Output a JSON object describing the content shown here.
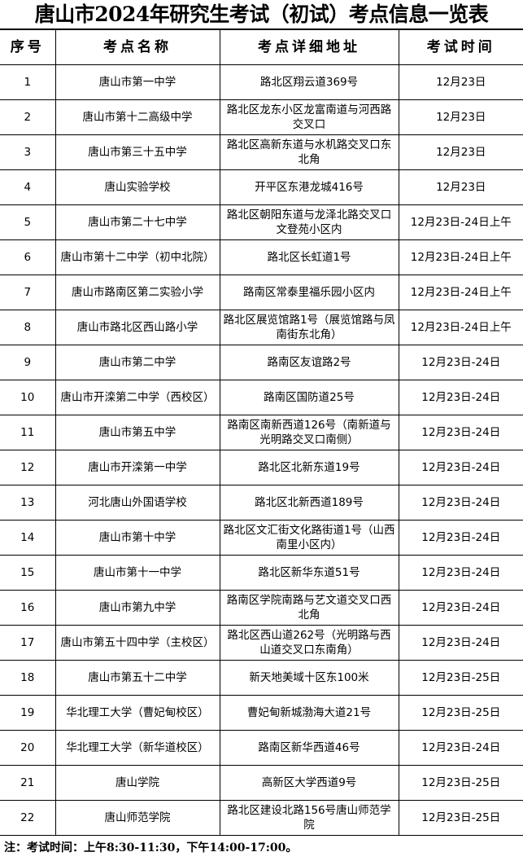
{
  "title": "唐山市2024年研究生考试（初试）考点信息一览表",
  "headers": [
    "序号",
    "考点名称",
    "考点详细地址",
    "考试时间"
  ],
  "rows": [
    [
      "1",
      "唐山市第一中学",
      "路北区翔云道369号",
      "12月23日"
    ],
    [
      "2",
      "唐山市第十二高级中学",
      "路北区龙东小区龙富南道与河西路交叉口",
      "12月23日"
    ],
    [
      "3",
      "唐山市第三十五中学",
      "路北区高新东道与水机路交叉口东北角",
      "12月23日"
    ],
    [
      "4",
      "唐山实验学校",
      "开平区东港龙城416号",
      "12月23日"
    ],
    [
      "5",
      "唐山市第二十七中学",
      "路北区朝阳东道与龙泽北路交叉口文登苑小区内",
      "12月23日-24日上午"
    ],
    [
      "6",
      "唐山市第十二中学（初中北院）",
      "路北区长虹道1号",
      "12月23日-24日上午"
    ],
    [
      "7",
      "唐山市路南区第二实验小学",
      "路南区常泰里福乐园小区内",
      "12月23日-24日上午"
    ],
    [
      "8",
      "唐山市路北区西山路小学",
      "路北区展览馆路1号（展览馆路与凤南街东北角）",
      "12月23日-24日上午"
    ],
    [
      "9",
      "唐山市第二中学",
      "路南区友谊路2号",
      "12月23日-24日"
    ],
    [
      "10",
      "唐山市开滦第二中学（西校区）",
      "路南区国防道25号",
      "12月23日-24日"
    ],
    [
      "11",
      "唐山市第五中学",
      "路南区南新西道126号（南新道与光明路交叉口南侧）",
      "12月23日-24日"
    ],
    [
      "12",
      "唐山市开滦第一中学",
      "路北区北新东道19号",
      "12月23日-24日"
    ],
    [
      "13",
      "河北唐山外国语学校",
      "路北区北新西道189号",
      "12月23日-24日"
    ],
    [
      "14",
      "唐山市第十中学",
      "路北区文汇街文化路街道1号（山西南里小区内）",
      "12月23日-24日"
    ],
    [
      "15",
      "唐山市第十一中学",
      "路北区新华东道51号",
      "12月23日-24日"
    ],
    [
      "16",
      "唐山市第九中学",
      "路南区学院南路与艺文道交叉口西北角",
      "12月23日-24日"
    ],
    [
      "17",
      "唐山市第五十四中学（主校区）",
      "路北区西山道262号（光明路与西山道交叉口东南角）",
      "12月23日-24日"
    ],
    [
      "18",
      "唐山市第五十二中学",
      "新天地美域十区东100米",
      "12月23日-25日"
    ],
    [
      "19",
      "华北理工大学（曹妃甸校区）",
      "曹妃甸新城渤海大道21号",
      "12月23日-25日"
    ],
    [
      "20",
      "华北理工大学（新华道校区）",
      "路南区新华西道46号",
      "12月23日-24日"
    ],
    [
      "21",
      "唐山学院",
      "高新区大学西道9号",
      "12月23日-25日"
    ],
    [
      "22",
      "唐山师范学院",
      "路北区建设北路156号唐山师范学院",
      "12月23日-25日"
    ]
  ],
  "note": "注：考试时间：上午8:30-11:30，下午14:00-17:00。"
}
